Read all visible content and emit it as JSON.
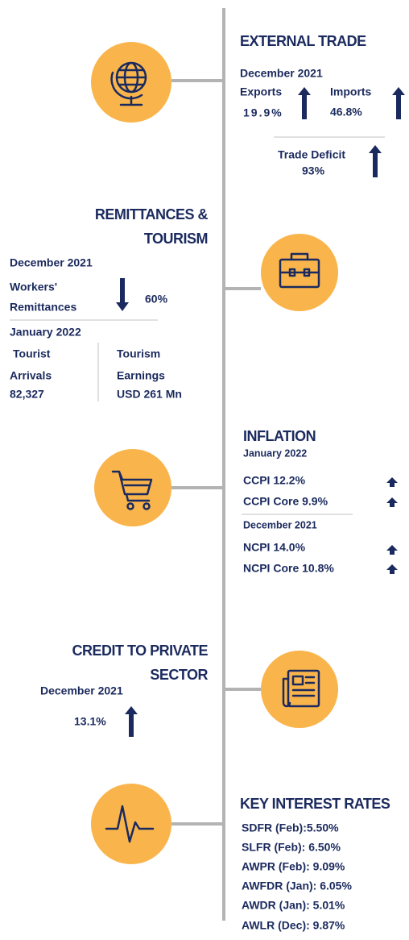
{
  "external_trade": {
    "title": "EXTERNAL TRADE",
    "period": "December 2021",
    "exports": {
      "label": "Exports",
      "value": "19.9%"
    },
    "imports": {
      "label": "Imports",
      "value": "46.8%"
    },
    "trade_deficit": {
      "label": "Trade Deficit",
      "value": "93%"
    }
  },
  "remittances_tourism": {
    "title_lines": [
      "REMITTANCES &",
      "TOURISM"
    ],
    "period": "December 2021",
    "workers_remittances": {
      "label_lines": [
        "Workers'",
        "Remittances"
      ],
      "value": "60%"
    },
    "tourism_period": "January 2022",
    "tourist_arrivals": {
      "label_lines": [
        "Tourist",
        "Arrivals"
      ],
      "value": "82,327"
    },
    "tourism_earnings": {
      "label_lines": [
        "Tourism",
        "Earnings"
      ],
      "value": "USD 261 Mn"
    }
  },
  "inflation": {
    "title": "INFLATION",
    "groups": [
      {
        "period": "January 2022",
        "items": [
          "CCPI 12.2%",
          "CCPI Core 9.9%"
        ]
      },
      {
        "period": "December 2021",
        "items": [
          "NCPI 14.0%",
          "NCPI Core 10.8%"
        ]
      }
    ]
  },
  "credit_to_private_sector": {
    "title_lines": [
      "CREDIT TO PRIVATE",
      "SECTOR"
    ],
    "period": "December 2021",
    "value": "13.1%"
  },
  "key_interest_rates": {
    "title": "KEY INTEREST RATES",
    "items": [
      "SDFR (Feb):5.50%",
      "SLFR (Feb): 6.50%",
      "AWPR (Feb): 9.09%",
      "AWFDR (Jan): 6.05%",
      "AWDR (Jan): 5.01%",
      "AWLR (Dec): 9.87%"
    ]
  }
}
